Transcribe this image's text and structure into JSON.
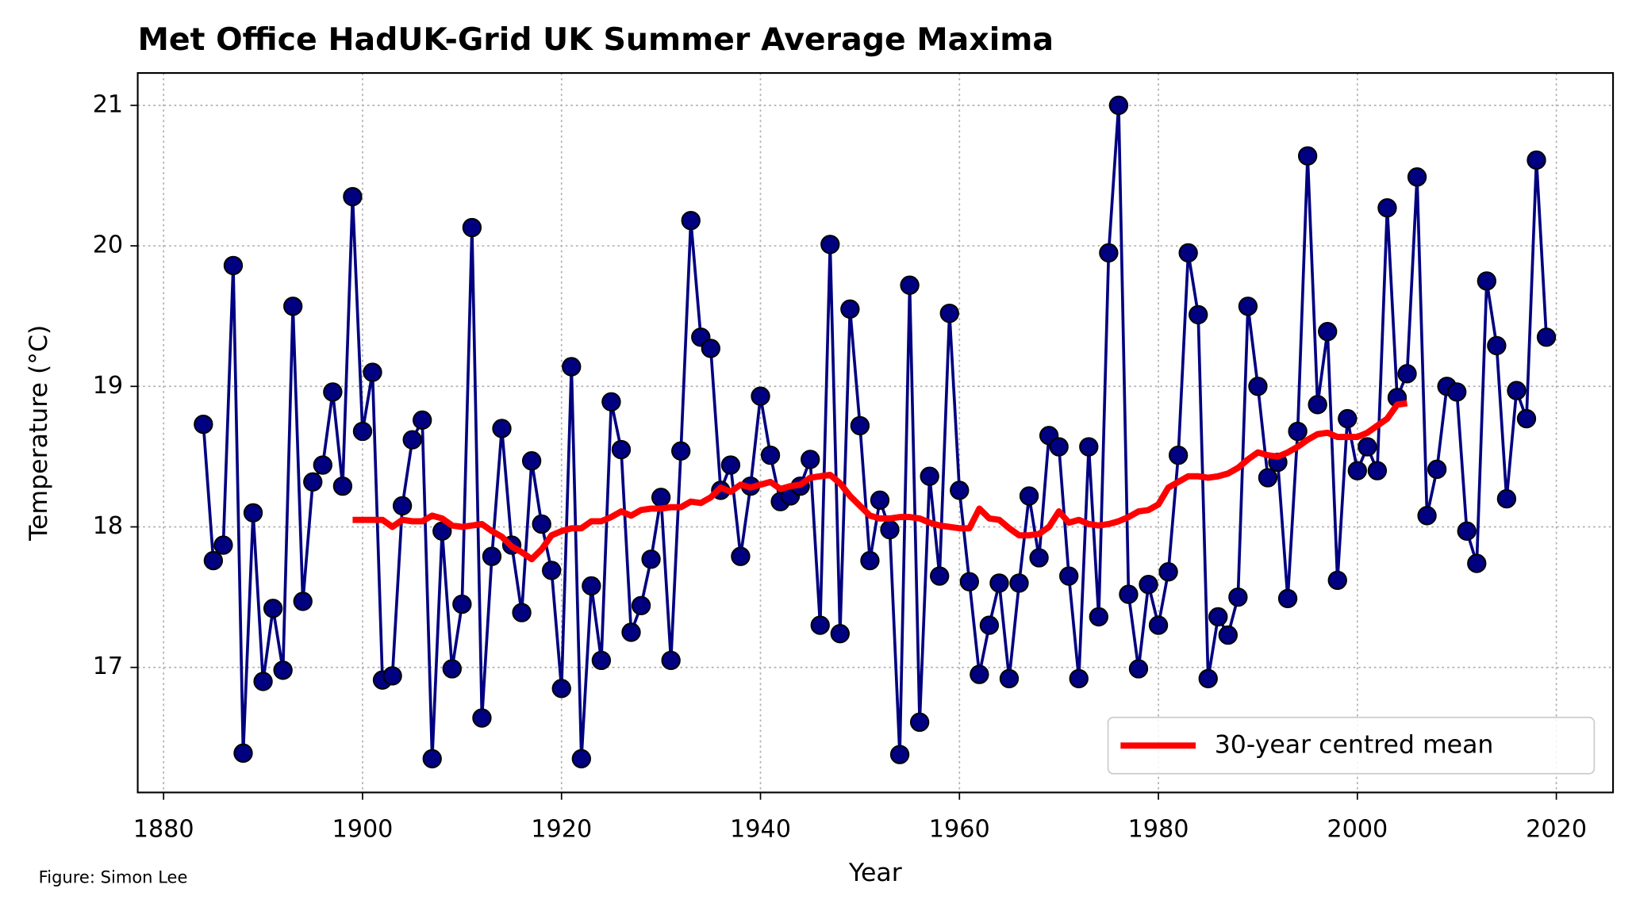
{
  "chart_data": {
    "type": "line",
    "title": "Met Office HadUK-Grid UK Summer Average Maxima",
    "xlabel": "Year",
    "ylabel": "Temperature (°C)",
    "credit": "Figure: Simon Lee",
    "xlim": [
      1877.4,
      2025.7
    ],
    "ylim": [
      16.11,
      21.23
    ],
    "xticks": [
      1880,
      1900,
      1920,
      1940,
      1960,
      1980,
      2000,
      2020
    ],
    "yticks": [
      17,
      18,
      19,
      20,
      21
    ],
    "grid": true,
    "legend": "lower right",
    "series": [
      {
        "color": "#000080",
        "marker": true,
        "x": [
          1884,
          1885,
          1886,
          1887,
          1888,
          1889,
          1890,
          1891,
          1892,
          1893,
          1894,
          1895,
          1896,
          1897,
          1898,
          1899,
          1900,
          1901,
          1902,
          1903,
          1904,
          1905,
          1906,
          1907,
          1908,
          1909,
          1910,
          1911,
          1912,
          1913,
          1914,
          1915,
          1916,
          1917,
          1918,
          1919,
          1920,
          1921,
          1922,
          1923,
          1924,
          1925,
          1926,
          1927,
          1928,
          1929,
          1930,
          1931,
          1932,
          1933,
          1934,
          1935,
          1936,
          1937,
          1938,
          1939,
          1940,
          1941,
          1942,
          1943,
          1944,
          1945,
          1946,
          1947,
          1948,
          1949,
          1950,
          1951,
          1952,
          1953,
          1954,
          1955,
          1956,
          1957,
          1958,
          1959,
          1960,
          1961,
          1962,
          1963,
          1964,
          1965,
          1966,
          1967,
          1968,
          1969,
          1970,
          1971,
          1972,
          1973,
          1974,
          1975,
          1976,
          1977,
          1978,
          1979,
          1980,
          1981,
          1982,
          1983,
          1984,
          1985,
          1986,
          1987,
          1988,
          1989,
          1990,
          1991,
          1992,
          1993,
          1994,
          1995,
          1996,
          1997,
          1998,
          1999,
          2000,
          2001,
          2002,
          2003,
          2004,
          2005,
          2006,
          2007,
          2008,
          2009,
          2010,
          2011,
          2012,
          2013,
          2014,
          2015,
          2016,
          2017,
          2018,
          2019
        ],
        "values": [
          18.73,
          17.76,
          17.87,
          19.86,
          16.39,
          18.1,
          16.9,
          17.42,
          16.98,
          19.57,
          17.47,
          18.32,
          18.44,
          18.96,
          18.29,
          20.35,
          18.68,
          19.1,
          16.91,
          16.94,
          18.15,
          18.62,
          18.76,
          16.35,
          17.97,
          16.99,
          17.45,
          20.13,
          16.64,
          17.79,
          18.7,
          17.87,
          17.39,
          18.47,
          18.02,
          17.69,
          16.85,
          19.14,
          16.35,
          17.58,
          17.05,
          18.89,
          18.55,
          17.25,
          17.44,
          17.77,
          18.21,
          17.05,
          18.54,
          20.18,
          19.35,
          19.27,
          18.26,
          18.44,
          17.79,
          18.29,
          18.93,
          18.51,
          18.18,
          18.22,
          18.29,
          18.48,
          17.3,
          20.01,
          17.24,
          19.55,
          18.72,
          17.76,
          18.19,
          17.98,
          16.38,
          19.72,
          16.61,
          18.36,
          17.65,
          19.52,
          18.26,
          17.61,
          16.95,
          17.3,
          17.6,
          16.92,
          17.6,
          18.22,
          17.78,
          18.65,
          18.57,
          17.65,
          16.92,
          18.57,
          17.36,
          19.95,
          21.0,
          17.52,
          16.99,
          17.59,
          17.3,
          17.68,
          18.51,
          19.95,
          19.51,
          16.92,
          17.36,
          17.23,
          17.5,
          19.57,
          19.0,
          18.35,
          18.46,
          17.49,
          18.68,
          20.64,
          18.87,
          19.39,
          17.62,
          18.77,
          18.4,
          18.57,
          18.4,
          20.27,
          18.92,
          19.09,
          20.49,
          18.08,
          18.41,
          19.0,
          18.96,
          17.97,
          17.74,
          19.75,
          19.29,
          18.2,
          18.97,
          18.77,
          20.61,
          19.35
        ]
      },
      {
        "name": "30-year centred mean",
        "color": "#ff0000",
        "marker": false,
        "x": [
          1899,
          1900,
          1901,
          1902,
          1903,
          1904,
          1905,
          1906,
          1907,
          1908,
          1909,
          1910,
          1911,
          1912,
          1913,
          1914,
          1915,
          1916,
          1917,
          1918,
          1919,
          1920,
          1921,
          1922,
          1923,
          1924,
          1925,
          1926,
          1927,
          1928,
          1929,
          1930,
          1931,
          1932,
          1933,
          1934,
          1935,
          1936,
          1937,
          1938,
          1939,
          1940,
          1941,
          1942,
          1943,
          1944,
          1945,
          1946,
          1947,
          1948,
          1949,
          1950,
          1951,
          1952,
          1953,
          1954,
          1955,
          1956,
          1957,
          1958,
          1959,
          1960,
          1961,
          1962,
          1963,
          1964,
          1965,
          1966,
          1967,
          1968,
          1969,
          1970,
          1971,
          1972,
          1973,
          1974,
          1975,
          1976,
          1977,
          1978,
          1979,
          1980,
          1981,
          1982,
          1983,
          1984,
          1985,
          1986,
          1987,
          1988,
          1989,
          1990,
          1991,
          1992,
          1993,
          1994,
          1995,
          1996,
          1997,
          1998,
          1999,
          2000,
          2001,
          2002,
          2003,
          2004,
          2005
        ],
        "values": [
          18.05,
          18.05,
          18.05,
          18.05,
          18.0,
          18.05,
          18.04,
          18.04,
          18.08,
          18.06,
          18.01,
          18.0,
          18.01,
          18.02,
          17.97,
          17.93,
          17.86,
          17.82,
          17.77,
          17.84,
          17.94,
          17.97,
          17.99,
          17.99,
          18.04,
          18.04,
          18.07,
          18.11,
          18.08,
          18.12,
          18.13,
          18.13,
          18.14,
          18.14,
          18.18,
          18.17,
          18.21,
          18.28,
          18.25,
          18.3,
          18.28,
          18.3,
          18.32,
          18.27,
          18.29,
          18.3,
          18.35,
          18.36,
          18.37,
          18.31,
          18.22,
          18.15,
          18.08,
          18.06,
          18.06,
          18.07,
          18.07,
          18.06,
          18.03,
          18.01,
          18.0,
          17.99,
          17.99,
          18.13,
          18.06,
          18.05,
          17.99,
          17.94,
          17.94,
          17.95,
          18.0,
          18.11,
          18.03,
          18.05,
          18.02,
          18.01,
          18.02,
          18.04,
          18.07,
          18.11,
          18.12,
          18.16,
          18.28,
          18.32,
          18.36,
          18.36,
          18.35,
          18.36,
          18.38,
          18.42,
          18.48,
          18.53,
          18.51,
          18.5,
          18.53,
          18.57,
          18.62,
          18.66,
          18.67,
          18.64,
          18.64,
          18.64,
          18.67,
          18.72,
          18.77,
          18.87,
          18.88
        ]
      }
    ]
  }
}
